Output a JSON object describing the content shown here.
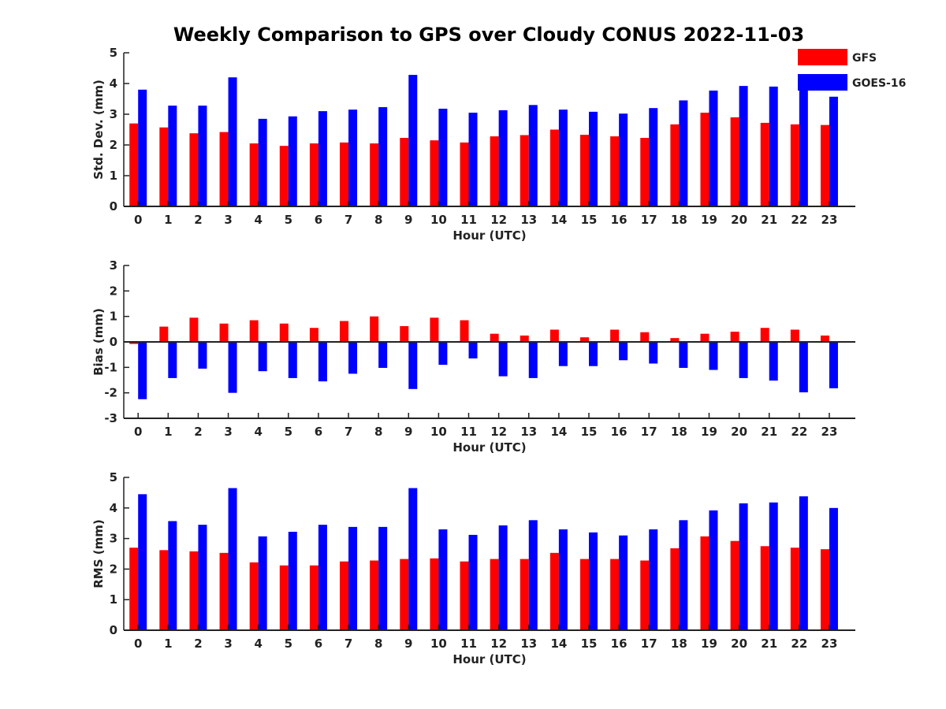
{
  "title": "Weekly Comparison to GPS over Cloudy CONUS 2022-11-03",
  "legend": {
    "placement": "top-right",
    "items": [
      {
        "name": "GFS",
        "color": "#ff0000"
      },
      {
        "name": "GOES-16",
        "color": "#0000ff"
      }
    ]
  },
  "chart_data": [
    {
      "type": "bar",
      "xlabel": "Hour (UTC)",
      "ylabel": "Std. Dev. (mm)",
      "ylim": [
        0,
        5
      ],
      "yticks": [
        "0",
        "1",
        "2",
        "3",
        "4",
        "5"
      ],
      "categories": [
        "0",
        "1",
        "2",
        "3",
        "4",
        "5",
        "6",
        "7",
        "8",
        "9",
        "10",
        "11",
        "12",
        "13",
        "14",
        "15",
        "16",
        "17",
        "18",
        "19",
        "20",
        "21",
        "22",
        "23"
      ],
      "series": [
        {
          "name": "GFS",
          "color": "#ff0000",
          "values": [
            2.7,
            2.57,
            2.38,
            2.42,
            2.05,
            1.97,
            2.05,
            2.08,
            2.05,
            2.23,
            2.15,
            2.08,
            2.28,
            2.32,
            2.5,
            2.33,
            2.28,
            2.23,
            2.67,
            3.05,
            2.9,
            2.72,
            2.67,
            2.65
          ]
        },
        {
          "name": "GOES-16",
          "color": "#0000ff",
          "values": [
            3.8,
            3.28,
            3.28,
            4.2,
            2.85,
            2.93,
            3.1,
            3.15,
            3.23,
            4.28,
            3.18,
            3.05,
            3.13,
            3.3,
            3.15,
            3.08,
            3.02,
            3.2,
            3.45,
            3.77,
            3.92,
            3.9,
            3.9,
            3.57
          ]
        }
      ]
    },
    {
      "type": "bar",
      "xlabel": "Hour (UTC)",
      "ylabel": "Bias (mm)",
      "ylim": [
        -3,
        3
      ],
      "yticks": [
        "-3",
        "-2",
        "-1",
        "0",
        "1",
        "2",
        "3"
      ],
      "categories": [
        "0",
        "1",
        "2",
        "3",
        "4",
        "5",
        "6",
        "7",
        "8",
        "9",
        "10",
        "11",
        "12",
        "13",
        "14",
        "15",
        "16",
        "17",
        "18",
        "19",
        "20",
        "21",
        "22",
        "23"
      ],
      "series": [
        {
          "name": "GFS",
          "color": "#ff0000",
          "values": [
            -0.08,
            0.6,
            0.95,
            0.72,
            0.85,
            0.72,
            0.55,
            0.82,
            1.0,
            0.62,
            0.95,
            0.85,
            0.32,
            0.25,
            0.48,
            0.18,
            0.48,
            0.38,
            0.15,
            0.32,
            0.4,
            0.55,
            0.48,
            0.25
          ]
        },
        {
          "name": "GOES-16",
          "color": "#0000ff",
          "values": [
            -2.25,
            -1.42,
            -1.05,
            -2.0,
            -1.15,
            -1.42,
            -1.55,
            -1.25,
            -1.02,
            -1.85,
            -0.9,
            -0.65,
            -1.35,
            -1.42,
            -0.95,
            -0.95,
            -0.72,
            -0.85,
            -1.02,
            -1.1,
            -1.42,
            -1.52,
            -1.98,
            -1.82
          ]
        }
      ]
    },
    {
      "type": "bar",
      "xlabel": "Hour (UTC)",
      "ylabel": "RMS (mm)",
      "ylim": [
        0,
        5
      ],
      "yticks": [
        "0",
        "1",
        "2",
        "3",
        "4",
        "5"
      ],
      "categories": [
        "0",
        "1",
        "2",
        "3",
        "4",
        "5",
        "6",
        "7",
        "8",
        "9",
        "10",
        "11",
        "12",
        "13",
        "14",
        "15",
        "16",
        "17",
        "18",
        "19",
        "20",
        "21",
        "22",
        "23"
      ],
      "series": [
        {
          "name": "GFS",
          "color": "#ff0000",
          "values": [
            2.7,
            2.62,
            2.58,
            2.53,
            2.22,
            2.12,
            2.12,
            2.25,
            2.28,
            2.33,
            2.35,
            2.25,
            2.33,
            2.33,
            2.53,
            2.33,
            2.33,
            2.28,
            2.68,
            3.07,
            2.92,
            2.75,
            2.7,
            2.65
          ]
        },
        {
          "name": "GOES-16",
          "color": "#0000ff",
          "values": [
            4.45,
            3.57,
            3.45,
            4.65,
            3.07,
            3.22,
            3.45,
            3.38,
            3.38,
            4.65,
            3.3,
            3.12,
            3.43,
            3.6,
            3.3,
            3.2,
            3.1,
            3.3,
            3.6,
            3.92,
            4.15,
            4.18,
            4.38,
            4.0
          ]
        }
      ]
    }
  ]
}
